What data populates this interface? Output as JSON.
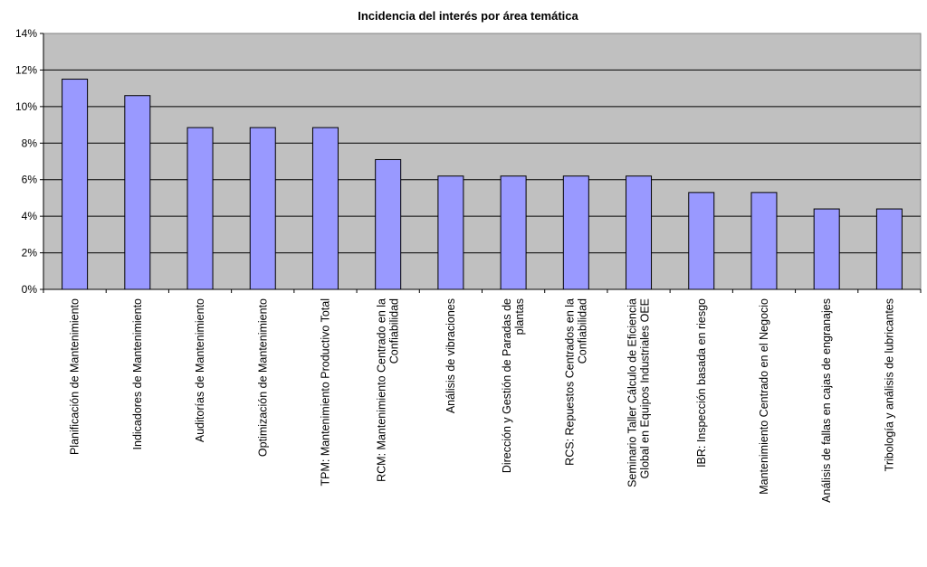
{
  "chart_data": {
    "type": "bar",
    "title": "Incidencia del interés por área temática",
    "xlabel": "",
    "ylabel": "",
    "ylim": [
      0,
      14
    ],
    "yticks": [
      "0%",
      "2%",
      "4%",
      "6%",
      "8%",
      "10%",
      "12%",
      "14%"
    ],
    "grid": true,
    "legend": "none",
    "colors": {
      "bar": "#9999ff",
      "plot_area": "#c0c0c0",
      "gridline": "#000000"
    },
    "categories": [
      [
        "Planificación de Mantenimiento"
      ],
      [
        "Indicadores de Mantenimiento"
      ],
      [
        "Auditorías de Mantenimiento"
      ],
      [
        "Optimización de Mantenimiento"
      ],
      [
        "TPM: Mantenimiento Productivo Total"
      ],
      [
        "RCM: Mantenimiento Centrado en la",
        "Confiabilidad"
      ],
      [
        "Análisis de vibraciones"
      ],
      [
        "Dirección y Gestión de Paradas de",
        "plantas"
      ],
      [
        "RCS: Repuestos Centrados en la",
        "Confiabilidad"
      ],
      [
        "Seminario Taller Cálculo de Eficiencia",
        "Global en Equipos Industriales OEE"
      ],
      [
        "IBR: Inspección basada en riesgo"
      ],
      [
        "Mantenimiento Centrado en el Negocio"
      ],
      [
        "Análisis de fallas en cajas de engranajes"
      ],
      [
        "Tribología y análisis de lubricantes"
      ]
    ],
    "values": [
      11.5,
      10.6,
      8.85,
      8.85,
      8.85,
      7.1,
      6.2,
      6.2,
      6.2,
      6.2,
      5.3,
      5.3,
      4.4,
      4.4
    ]
  }
}
